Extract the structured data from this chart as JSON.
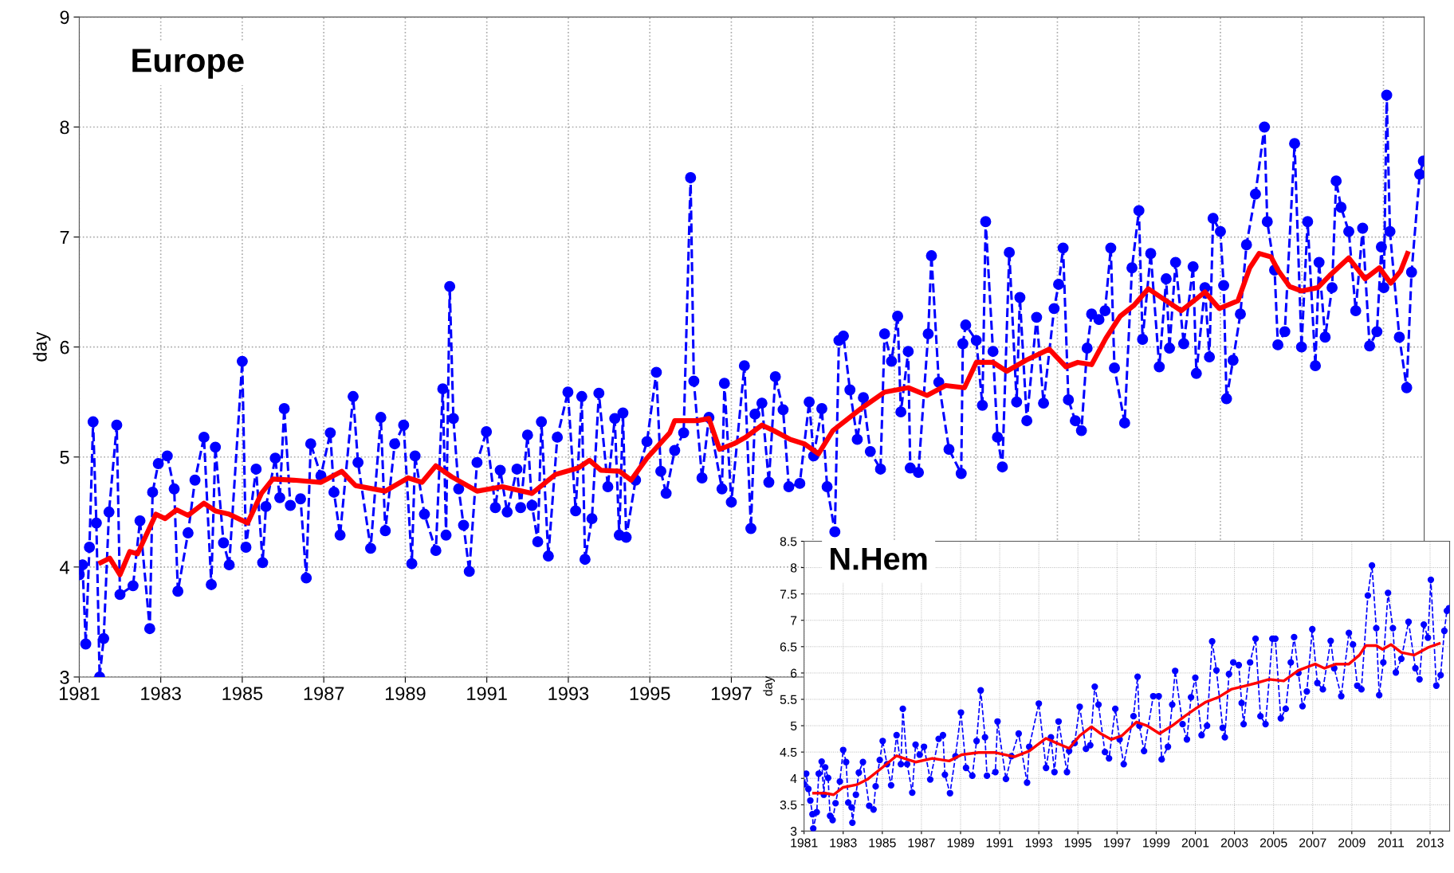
{
  "chart_data": [
    {
      "type": "line",
      "title": "Europe",
      "ylabel": "day",
      "xlim": [
        1981,
        2014
      ],
      "ylim": [
        3,
        9
      ],
      "yticks": [
        3,
        4,
        5,
        6,
        7,
        8,
        9
      ],
      "xticks": [
        1981,
        1983,
        1985,
        1987,
        1989,
        1991,
        1993,
        1995,
        1997,
        {
          "value": 1999,
          "label": null
        },
        {
          "value": 2001,
          "label": null
        },
        {
          "value": 2003,
          "label": null
        },
        {
          "value": 2005,
          "label": null
        },
        {
          "value": 2007,
          "label": null
        },
        {
          "value": 2009,
          "label": null
        },
        {
          "value": 2011,
          "label": null
        },
        {
          "value": 2013,
          "label": null
        }
      ],
      "grid": true,
      "series": [
        {
          "color": "#0000ff",
          "marker": "circle",
          "line_style": "dashed",
          "x": [
            1981.0,
            1981.08,
            1981.16,
            1981.25,
            1981.34,
            1981.42,
            1981.5,
            1981.6,
            1981.73,
            1981.92,
            1982.0,
            1982.32,
            1982.49,
            1982.73,
            1982.8,
            1982.94,
            1983.16,
            1983.33,
            1983.42,
            1983.67,
            1983.84,
            1984.06,
            1984.24,
            1984.34,
            1984.54,
            1984.68,
            1985.0,
            1985.09,
            1985.34,
            1985.5,
            1985.58,
            1985.81,
            1985.92,
            1986.03,
            1986.18,
            1986.43,
            1986.57,
            1986.68,
            1986.93,
            1987.16,
            1987.25,
            1987.4,
            1987.72,
            1987.84,
            1988.15,
            1988.4,
            1988.51,
            1988.74,
            1988.96,
            1989.16,
            1989.24,
            1989.47,
            1989.75,
            1989.92,
            1990.0,
            1990.09,
            1990.18,
            1990.31,
            1990.43,
            1990.57,
            1990.76,
            1990.99,
            1991.21,
            1991.33,
            1991.5,
            1991.74,
            1991.83,
            1992.0,
            1992.11,
            1992.25,
            1992.34,
            1992.51,
            1992.73,
            1992.99,
            1993.18,
            1993.33,
            1993.41,
            1993.58,
            1993.75,
            1993.97,
            1994.14,
            1994.25,
            1994.34,
            1994.42,
            1994.65,
            1994.93,
            1995.16,
            1995.27,
            1995.4,
            1995.61,
            1995.83,
            1996.0,
            1996.08,
            1996.28,
            1996.45,
            1996.77,
            1996.83,
            1997.0,
            1997.32,
            1997.48,
            1997.58,
            1997.75,
            1997.92,
            1998.08,
            1998.27,
            1998.41,
            1998.68,
            1998.91,
            1999.02,
            1999.22,
            1999.35,
            1999.54,
            1999.64,
            1999.75,
            1999.91,
            2000.09,
            2000.24,
            2000.41,
            2000.66,
            2000.76,
            2000.93,
            2001.08,
            2001.16,
            2001.34,
            2001.39,
            2001.59,
            2001.83,
            2001.91,
            2002.09,
            2002.34,
            2002.64,
            2002.68,
            2002.75,
            2003.01,
            2003.16,
            2003.24,
            2003.42,
            2003.53,
            2003.65,
            2003.82,
            2004.0,
            2004.08,
            2004.25,
            2004.49,
            2004.66,
            2004.92,
            2005.03,
            2005.14,
            2005.27,
            2005.44,
            2005.59,
            2005.73,
            2005.84,
            2006.02,
            2006.17,
            2006.31,
            2006.4,
            2006.65,
            2006.83,
            2007.0,
            2007.09,
            2007.29,
            2007.5,
            2007.67,
            2007.75,
            2007.9,
            2008.1,
            2008.33,
            2008.41,
            2008.62,
            2008.73,
            2008.82,
            2009.0,
            2009.08,
            2009.15,
            2009.31,
            2009.49,
            2009.64,
            2009.86,
            2010.08,
            2010.15,
            2010.33,
            2010.41,
            2010.58,
            2010.82,
            2010.99,
            2011.14,
            2011.33,
            2011.42,
            2011.57,
            2011.74,
            2011.84,
            2011.96,
            2012.15,
            2012.32,
            2012.49,
            2012.66,
            2012.84,
            2012.95,
            2013.01,
            2013.08,
            2013.16,
            2013.39,
            2013.57,
            2013.69,
            2013.89,
            2013.98
          ],
          "values": [
            3.93,
            4.02,
            3.3,
            4.18,
            5.32,
            4.4,
            3.0,
            3.35,
            4.5,
            5.29,
            3.75,
            3.83,
            4.42,
            3.44,
            4.68,
            4.94,
            5.01,
            4.71,
            3.78,
            4.31,
            4.79,
            5.18,
            3.84,
            5.09,
            4.22,
            4.02,
            5.87,
            4.18,
            4.89,
            4.04,
            4.55,
            4.99,
            4.63,
            5.44,
            4.56,
            4.62,
            3.9,
            5.12,
            4.83,
            5.22,
            4.68,
            4.29,
            5.55,
            4.95,
            4.17,
            5.36,
            4.33,
            5.12,
            5.29,
            4.03,
            5.01,
            4.48,
            4.15,
            5.62,
            4.29,
            6.55,
            5.35,
            4.71,
            4.38,
            3.96,
            4.95,
            5.23,
            4.54,
            4.88,
            4.5,
            4.89,
            4.54,
            5.2,
            4.56,
            4.23,
            5.32,
            4.1,
            5.18,
            5.59,
            4.51,
            5.55,
            4.07,
            4.44,
            5.58,
            4.73,
            5.35,
            4.29,
            5.4,
            4.27,
            4.79,
            5.14,
            5.77,
            4.87,
            4.67,
            5.06,
            5.22,
            7.54,
            5.69,
            4.81,
            5.36,
            4.71,
            5.67,
            4.59,
            5.83,
            4.35,
            5.39,
            5.49,
            4.77,
            5.73,
            5.43,
            4.73,
            4.76,
            5.5,
            5.01,
            5.44,
            4.73,
            4.32,
            6.06,
            6.1,
            5.61,
            5.16,
            5.54,
            5.05,
            4.89,
            6.12,
            5.87,
            6.28,
            5.41,
            5.96,
            4.9,
            4.86,
            6.12,
            6.83,
            5.68,
            5.07,
            4.85,
            6.03,
            6.2,
            6.06,
            5.47,
            7.14,
            5.96,
            5.18,
            4.91,
            6.86,
            5.5,
            6.45,
            5.33,
            6.27,
            5.49,
            6.35,
            6.57,
            6.9,
            5.52,
            5.33,
            5.24,
            5.99,
            6.3,
            6.25,
            6.33,
            6.9,
            5.81,
            5.31,
            6.72,
            7.24,
            6.07,
            6.85,
            5.82,
            6.62,
            5.99,
            6.77,
            6.03,
            6.73,
            5.76,
            6.54,
            5.91,
            7.17,
            7.05,
            6.56,
            5.53,
            5.88,
            6.3,
            6.93,
            7.39,
            8.0,
            7.14,
            6.7,
            6.02,
            6.14,
            7.85,
            6.0,
            7.14,
            5.83,
            6.77,
            6.09,
            6.54,
            7.51,
            7.27,
            7.05,
            6.33,
            7.08,
            6.01,
            6.14,
            6.91,
            6.54,
            8.29,
            7.05,
            6.09,
            5.63,
            6.68,
            7.57,
            7.69
          ]
        },
        {
          "color": "#ff0000",
          "marker": "none",
          "line_style": "solid",
          "x": [
            1981.53,
            1981.75,
            1982.0,
            1982.24,
            1982.43,
            1982.88,
            1983.11,
            1983.39,
            1983.67,
            1984.06,
            1984.34,
            1984.68,
            1985.13,
            1985.47,
            1985.75,
            1986.26,
            1986.93,
            1987.44,
            1987.78,
            1988.51,
            1989.07,
            1989.41,
            1989.75,
            1990.14,
            1990.76,
            1991.38,
            1992.11,
            1992.68,
            1993.24,
            1993.52,
            1993.8,
            1994.26,
            1994.54,
            1994.93,
            1995.49,
            1995.61,
            1996.17,
            1996.45,
            1996.71,
            1997.06,
            1997.35,
            1997.75,
            1998.04,
            1998.45,
            1998.79,
            1999.14,
            1999.49,
            2000.18,
            2000.76,
            2001.34,
            2001.8,
            2002.26,
            2002.72,
            2003.01,
            2003.42,
            2003.76,
            2004.23,
            2004.8,
            2005.21,
            2005.5,
            2005.84,
            2006.19,
            2006.54,
            2006.88,
            2007.23,
            2007.63,
            2008.04,
            2008.62,
            2008.97,
            2009.43,
            2009.72,
            2009.95,
            2010.24,
            2010.41,
            2010.7,
            2010.99,
            2011.39,
            2011.68,
            2012.15,
            2012.55,
            2012.9,
            2013.18,
            2013.42,
            2013.59
          ],
          "values": [
            4.04,
            4.08,
            3.93,
            4.14,
            4.12,
            4.48,
            4.44,
            4.52,
            4.47,
            4.58,
            4.51,
            4.48,
            4.4,
            4.67,
            4.8,
            4.79,
            4.77,
            4.87,
            4.74,
            4.69,
            4.81,
            4.77,
            4.92,
            4.82,
            4.69,
            4.73,
            4.67,
            4.84,
            4.9,
            4.97,
            4.88,
            4.87,
            4.79,
            4.99,
            5.22,
            5.33,
            5.33,
            5.35,
            5.07,
            5.12,
            5.18,
            5.29,
            5.24,
            5.16,
            5.12,
            5.03,
            5.24,
            5.44,
            5.59,
            5.63,
            5.56,
            5.65,
            5.63,
            5.86,
            5.86,
            5.78,
            5.88,
            5.98,
            5.82,
            5.86,
            5.84,
            6.08,
            6.28,
            6.38,
            6.53,
            6.43,
            6.33,
            6.5,
            6.35,
            6.42,
            6.72,
            6.85,
            6.82,
            6.7,
            6.55,
            6.51,
            6.54,
            6.65,
            6.81,
            6.62,
            6.72,
            6.58,
            6.69,
            6.85
          ]
        }
      ]
    },
    {
      "type": "line",
      "title": "N.Hem",
      "ylabel": "day",
      "xlim": [
        1981,
        2014
      ],
      "ylim": [
        3,
        8.5
      ],
      "yticks": [
        3,
        3.5,
        4,
        4.5,
        5,
        5.5,
        6,
        6.5,
        7,
        7.5,
        8,
        8.5
      ],
      "xticks": [
        1981,
        1983,
        1985,
        1987,
        1989,
        1991,
        1993,
        1995,
        1997,
        1999,
        2001,
        2003,
        2005,
        2007,
        2009,
        2011,
        2013
      ],
      "grid": true,
      "series": [
        {
          "color": "#0000ff",
          "marker": "circle",
          "line_style": "dashed",
          "x": [
            1981.0,
            1981.11,
            1981.22,
            1981.32,
            1981.43,
            1981.47,
            1981.65,
            1981.75,
            1981.9,
            1982.01,
            1982.08,
            1982.23,
            1982.33,
            1982.46,
            1982.61,
            1982.83,
            1983.0,
            1983.15,
            1983.26,
            1983.43,
            1983.47,
            1983.65,
            1983.8,
            1984.01,
            1984.33,
            1984.55,
            1984.66,
            1984.87,
            1985.02,
            1985.24,
            1985.45,
            1985.73,
            1985.95,
            1986.05,
            1986.27,
            1986.53,
            1986.7,
            1986.91,
            1987.13,
            1987.45,
            1987.88,
            1988.1,
            1988.2,
            1988.46,
            1988.74,
            1989.02,
            1989.28,
            1989.6,
            1989.82,
            1990.03,
            1990.25,
            1990.35,
            1990.78,
            1990.89,
            1991.32,
            1991.6,
            1991.97,
            1992.4,
            1992.51,
            1993.0,
            1993.37,
            1993.62,
            1993.8,
            1994.01,
            1994.44,
            1994.55,
            1994.83,
            1995.09,
            1995.41,
            1995.63,
            1995.86,
            1996.05,
            1996.38,
            1996.59,
            1996.91,
            1997.13,
            1997.34,
            1997.84,
            1998.05,
            1998.14,
            1998.38,
            1998.85,
            1999.13,
            1999.28,
            1999.6,
            1999.82,
            1999.97,
            2000.35,
            2000.57,
            2000.78,
            2001.0,
            2001.32,
            2001.6,
            2001.86,
            2002.08,
            2002.4,
            2002.51,
            2002.72,
            2002.94,
            2003.22,
            2003.37,
            2003.47,
            2003.8,
            2004.08,
            2004.33,
            2004.59,
            2004.94,
            2005.09,
            2005.37,
            2005.62,
            2005.88,
            2006.05,
            2006.27,
            2006.48,
            2006.7,
            2006.98,
            2007.24,
            2007.52,
            2007.92,
            2008.1,
            2008.46,
            2008.85,
            2009.06,
            2009.28,
            2009.49,
            2009.82,
            2010.03,
            2010.25,
            2010.4,
            2010.61,
            2010.85,
            2011.1,
            2011.25,
            2011.53,
            2011.9,
            2012.25,
            2012.46,
            2012.68,
            2012.89,
            2013.04,
            2013.32,
            2013.54,
            2013.73,
            2013.86,
            2013.97
          ],
          "values": [
            3.89,
            4.09,
            3.8,
            3.58,
            3.32,
            3.05,
            3.36,
            4.09,
            4.32,
            3.69,
            4.21,
            4.01,
            3.29,
            3.21,
            3.53,
            3.94,
            4.54,
            4.31,
            3.54,
            3.45,
            3.16,
            3.69,
            4.11,
            4.31,
            3.48,
            3.41,
            3.85,
            4.35,
            4.71,
            4.27,
            3.87,
            4.82,
            4.27,
            5.32,
            4.27,
            3.73,
            4.64,
            4.45,
            4.6,
            3.98,
            4.75,
            4.82,
            4.07,
            3.72,
            4.42,
            5.25,
            4.2,
            4.05,
            4.71,
            5.67,
            4.78,
            4.05,
            4.12,
            5.08,
            3.99,
            4.42,
            4.85,
            3.92,
            4.6,
            5.42,
            4.2,
            4.78,
            4.12,
            5.08,
            4.12,
            4.52,
            4.67,
            5.36,
            4.56,
            4.63,
            5.74,
            5.4,
            4.5,
            4.38,
            5.32,
            4.74,
            4.27,
            5.18,
            5.93,
            5.0,
            4.52,
            5.56,
            5.56,
            4.36,
            4.6,
            5.4,
            6.04,
            5.03,
            4.74,
            5.54,
            5.91,
            4.82,
            5.0,
            6.6,
            6.05,
            4.96,
            4.78,
            5.98,
            6.2,
            6.15,
            5.43,
            5.03,
            6.2,
            6.65,
            5.18,
            5.03,
            6.65,
            6.65,
            5.14,
            5.32,
            6.2,
            6.68,
            6.0,
            5.37,
            5.65,
            6.83,
            5.81,
            5.69,
            6.61,
            6.09,
            5.56,
            6.76,
            6.54,
            5.76,
            5.69,
            7.47,
            8.04,
            6.85,
            5.58,
            6.2,
            7.52,
            6.85,
            6.01,
            6.27,
            6.97,
            6.09,
            5.88,
            6.92,
            6.67,
            7.77,
            5.76,
            5.96,
            6.8,
            7.18,
            7.23
          ]
        },
        {
          "color": "#ff0000",
          "marker": "none",
          "line_style": "solid",
          "x": [
            1981.49,
            1982.08,
            1982.51,
            1983.0,
            1983.69,
            1984.23,
            1984.98,
            1985.73,
            1986.27,
            1986.7,
            1987.56,
            1988.42,
            1989.06,
            1989.92,
            1990.78,
            1991.75,
            1992.51,
            1993.37,
            1993.91,
            1994.55,
            1995.09,
            1995.69,
            1996.16,
            1996.7,
            1997.24,
            1997.99,
            1998.53,
            1999.17,
            1999.82,
            2000.46,
            2001.0,
            2001.54,
            2002.18,
            2002.83,
            2003.58,
            2004.12,
            2004.77,
            2005.52,
            2006.27,
            2007.13,
            2007.6,
            2008.2,
            2008.85,
            2009.39,
            2009.71,
            2010.25,
            2010.57,
            2011.0,
            2011.53,
            2012.18,
            2012.93,
            2013.47
          ],
          "values": [
            3.72,
            3.72,
            3.69,
            3.83,
            3.88,
            3.98,
            4.2,
            4.43,
            4.36,
            4.31,
            4.38,
            4.33,
            4.45,
            4.49,
            4.49,
            4.41,
            4.52,
            4.76,
            4.67,
            4.57,
            4.81,
            4.98,
            4.85,
            4.74,
            4.81,
            5.07,
            5.0,
            4.85,
            5.0,
            5.18,
            5.32,
            5.45,
            5.54,
            5.69,
            5.76,
            5.81,
            5.88,
            5.85,
            6.05,
            6.17,
            6.09,
            6.17,
            6.17,
            6.34,
            6.52,
            6.52,
            6.45,
            6.54,
            6.39,
            6.34,
            6.49,
            6.56
          ]
        }
      ]
    }
  ]
}
